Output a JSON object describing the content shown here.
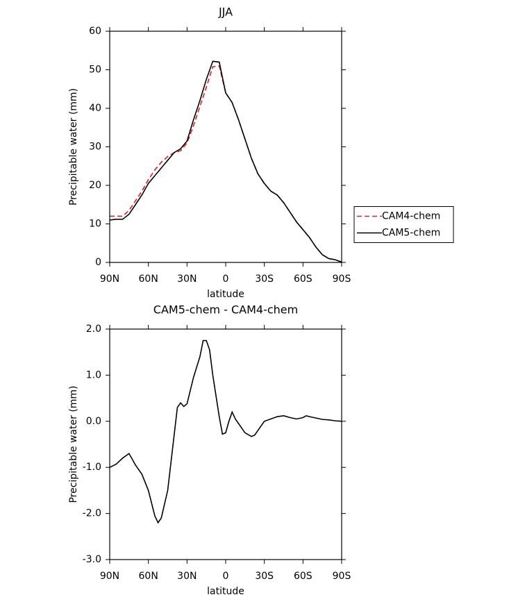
{
  "chart_data": [
    {
      "type": "line",
      "title": "JJA",
      "xlabel": "latitude",
      "ylabel": "Precipitable water (mm)",
      "x": [
        90,
        85,
        80,
        75,
        70,
        65,
        60,
        55,
        50,
        45,
        40,
        35,
        30,
        25,
        20,
        15,
        10,
        5,
        0,
        -5,
        -10,
        -15,
        -20,
        -25,
        -30,
        -35,
        -40,
        -45,
        -50,
        -55,
        -60,
        -65,
        -70,
        -75,
        -80,
        -85,
        -90
      ],
      "series": [
        {
          "name": "CAM4-chem",
          "color": "#e41a1c",
          "line_style": "dashed",
          "values": [
            12,
            12,
            12,
            13.5,
            16,
            18.5,
            21.5,
            24,
            26,
            27.5,
            28.5,
            29,
            31,
            35.5,
            40.5,
            45.5,
            50.8,
            51,
            44,
            41.5,
            37,
            32,
            27,
            23,
            20.5,
            18.5,
            17.5,
            15.5,
            13,
            10.5,
            8.5,
            6.5,
            4,
            2,
            1,
            0.7,
            0.1
          ]
        },
        {
          "name": "CAM5-chem",
          "color": "#000000",
          "line_style": "solid",
          "values": [
            11,
            11.2,
            11.2,
            12.5,
            15,
            17.5,
            20.5,
            22.5,
            24.5,
            26.5,
            28.5,
            29.5,
            31.5,
            37,
            42,
            47.5,
            52.2,
            52,
            44,
            41.5,
            37,
            32,
            27,
            23,
            20.5,
            18.5,
            17.5,
            15.5,
            13,
            10.5,
            8.5,
            6.5,
            4,
            2,
            1,
            0.7,
            0.1
          ]
        }
      ],
      "xlim": [
        90,
        -90
      ],
      "xticks": [
        {
          "value": 90,
          "label": "90N"
        },
        {
          "value": 60,
          "label": "60N"
        },
        {
          "value": 30,
          "label": "30N"
        },
        0,
        {
          "value": -30,
          "label": "30S"
        },
        {
          "value": -60,
          "label": "60S"
        },
        {
          "value": -90,
          "label": "90S"
        }
      ],
      "ylim": [
        0,
        60
      ],
      "yticks": [
        0,
        10,
        20,
        30,
        40,
        50,
        60
      ],
      "legend": "right"
    },
    {
      "type": "line",
      "title": "CAM5-chem - CAM4-chem",
      "xlabel": "latitude",
      "ylabel": "Precipitable water (mm)",
      "x": [
        90,
        85,
        80,
        75,
        70,
        65,
        60,
        55,
        52.5,
        50,
        45,
        40,
        37.5,
        35,
        32.5,
        30,
        25,
        20,
        17.5,
        15,
        12.5,
        10,
        5,
        2.5,
        0,
        -2.5,
        -5,
        -7.5,
        -10,
        -15,
        -20,
        -22.5,
        -25,
        -30,
        -35,
        -40,
        -45,
        -50,
        -55,
        -60,
        -62.5,
        -65,
        -70,
        -75,
        -80,
        -85,
        -90
      ],
      "series": [
        {
          "color": "#000000",
          "line_style": "solid",
          "values": [
            -1.0,
            -0.93,
            -0.8,
            -0.7,
            -0.95,
            -1.15,
            -1.5,
            -2.05,
            -2.2,
            -2.1,
            -1.5,
            -0.3,
            0.3,
            0.4,
            0.32,
            0.38,
            0.95,
            1.4,
            1.75,
            1.75,
            1.55,
            1.0,
            0.1,
            -0.28,
            -0.25,
            0.0,
            0.2,
            0.05,
            -0.05,
            -0.25,
            -0.33,
            -0.3,
            -0.2,
            0.0,
            0.05,
            0.1,
            0.12,
            0.08,
            0.05,
            0.08,
            0.12,
            0.1,
            0.07,
            0.04,
            0.03,
            0.01,
            0.0
          ]
        }
      ],
      "xlim": [
        90,
        -90
      ],
      "xticks": [
        {
          "value": 90,
          "label": "90N"
        },
        {
          "value": 60,
          "label": "60N"
        },
        {
          "value": 30,
          "label": "30N"
        },
        0,
        {
          "value": -30,
          "label": "30S"
        },
        {
          "value": -60,
          "label": "60S"
        },
        {
          "value": -90,
          "label": "90S"
        }
      ],
      "ylim": [
        -3,
        2
      ],
      "yticks": [
        {
          "value": -3,
          "label": "-3.0"
        },
        {
          "value": -2,
          "label": "-2.0"
        },
        {
          "value": -1,
          "label": "-1.0"
        },
        {
          "value": 0,
          "label": "0.0"
        },
        {
          "value": 1,
          "label": "1.0"
        },
        {
          "value": 2,
          "label": "2.0"
        }
      ]
    }
  ]
}
